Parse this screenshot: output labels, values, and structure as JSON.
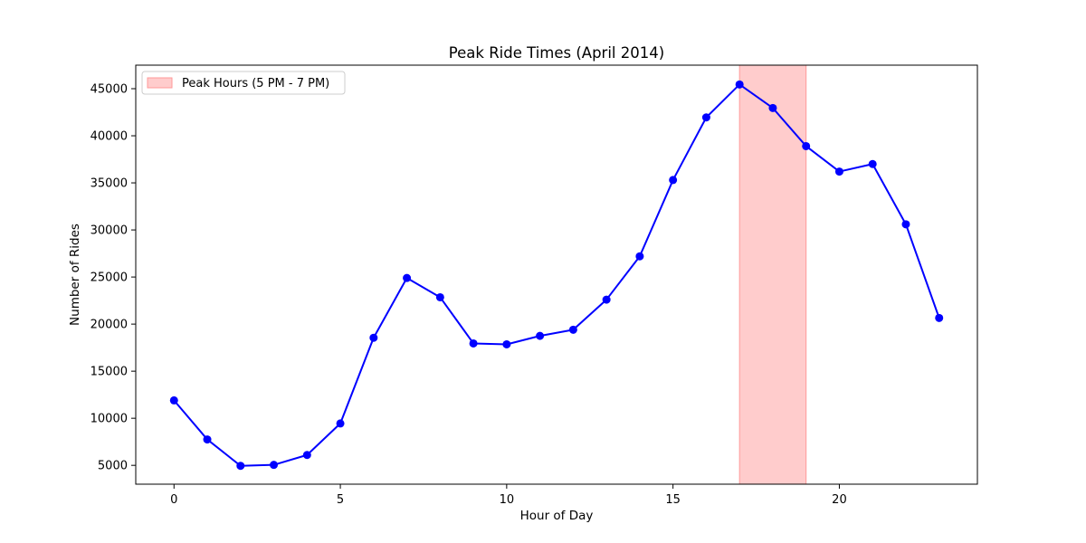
{
  "chart_data": {
    "type": "line",
    "title": "Peak Ride Times (April 2014)",
    "xlabel": "Hour of Day",
    "ylabel": "Number of Rides",
    "xlim": [
      -1.15,
      24.15
    ],
    "ylim": [
      3000,
      47500
    ],
    "xticks": [
      0,
      5,
      10,
      15,
      20
    ],
    "yticks": [
      5000,
      10000,
      15000,
      20000,
      25000,
      30000,
      35000,
      40000,
      45000
    ],
    "grid": false,
    "legend_position": "upper-left",
    "series": [
      {
        "color": "#0000ff",
        "marker": "circle",
        "x": [
          0,
          1,
          2,
          3,
          4,
          5,
          6,
          7,
          8,
          9,
          10,
          11,
          12,
          13,
          14,
          15,
          16,
          17,
          18,
          19,
          20,
          21,
          22,
          23
        ],
        "values": [
          11900,
          7750,
          4950,
          5050,
          6100,
          9450,
          18550,
          24900,
          22850,
          17950,
          17850,
          18750,
          19400,
          22600,
          27200,
          35300,
          41950,
          45450,
          42950,
          38900,
          36200,
          37000,
          30600,
          20650
        ]
      }
    ],
    "highlight": {
      "label": "Peak Hours (5 PM - 7 PM)",
      "x_start": 17,
      "x_end": 19,
      "color": "#ff9999"
    }
  }
}
